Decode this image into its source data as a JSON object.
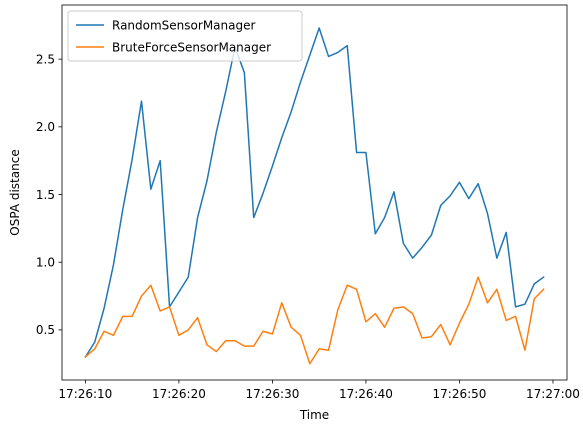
{
  "chart_data": {
    "type": "line",
    "title": "",
    "xlabel": "Time",
    "ylabel": "OSPA distance",
    "x_start": "17:26:10",
    "xlim": [
      "17:26:07.5",
      "17:27:01.5"
    ],
    "ylim": [
      0.13,
      2.9
    ],
    "x_ticks": [
      "17:26:10",
      "17:26:20",
      "17:26:30",
      "17:26:40",
      "17:26:50",
      "17:27:00"
    ],
    "y_ticks": [
      0.5,
      1.0,
      1.5,
      2.0,
      2.5
    ],
    "y_tick_labels": [
      "0.5",
      "1.0",
      "1.5",
      "2.0",
      "2.5"
    ],
    "legend_position": "top-left",
    "grid": false,
    "series": [
      {
        "name": "RandomSensorManager",
        "color": "#1f77b4",
        "x": [
          "17:26:10",
          "17:26:11",
          "17:26:12",
          "17:26:13",
          "17:26:14",
          "17:26:15",
          "17:26:16",
          "17:26:17",
          "17:26:18",
          "17:26:19",
          "17:26:20",
          "17:26:21",
          "17:26:22",
          "17:26:23",
          "17:26:24",
          "17:26:25",
          "17:26:26",
          "17:26:27",
          "17:26:28",
          "17:26:29",
          "17:26:30",
          "17:26:31",
          "17:26:32",
          "17:26:33",
          "17:26:34",
          "17:26:35",
          "17:26:36",
          "17:26:37",
          "17:26:38",
          "17:26:39",
          "17:26:40",
          "17:26:41",
          "17:26:42",
          "17:26:43",
          "17:26:44",
          "17:26:45",
          "17:26:46",
          "17:26:47",
          "17:26:48",
          "17:26:49",
          "17:26:50",
          "17:26:51",
          "17:26:52",
          "17:26:53",
          "17:26:54",
          "17:26:55",
          "17:26:56",
          "17:26:57",
          "17:26:58",
          "17:26:59"
        ],
        "values": [
          0.3,
          0.41,
          0.66,
          0.98,
          1.39,
          1.76,
          2.19,
          1.54,
          1.75,
          0.67,
          0.78,
          0.89,
          1.33,
          1.6,
          1.96,
          2.26,
          2.59,
          2.4,
          1.33,
          1.51,
          1.71,
          1.92,
          2.11,
          2.33,
          2.53,
          2.73,
          2.52,
          2.55,
          2.6,
          1.81,
          1.81,
          1.21,
          1.33,
          1.52,
          1.14,
          1.03,
          1.11,
          1.2,
          1.42,
          1.49,
          1.59,
          1.47,
          1.58,
          1.36,
          1.03,
          1.22,
          0.67,
          0.69,
          0.84,
          0.89
        ]
      },
      {
        "name": "BruteForceSensorManager",
        "color": "#ff7f0e",
        "x": [
          "17:26:10",
          "17:26:11",
          "17:26:12",
          "17:26:13",
          "17:26:14",
          "17:26:15",
          "17:26:16",
          "17:26:17",
          "17:26:18",
          "17:26:19",
          "17:26:20",
          "17:26:21",
          "17:26:22",
          "17:26:23",
          "17:26:24",
          "17:26:25",
          "17:26:26",
          "17:26:27",
          "17:26:28",
          "17:26:29",
          "17:26:30",
          "17:26:31",
          "17:26:32",
          "17:26:33",
          "17:26:34",
          "17:26:35",
          "17:26:36",
          "17:26:37",
          "17:26:38",
          "17:26:39",
          "17:26:40",
          "17:26:41",
          "17:26:42",
          "17:26:43",
          "17:26:44",
          "17:26:45",
          "17:26:46",
          "17:26:47",
          "17:26:48",
          "17:26:49",
          "17:26:50",
          "17:26:51",
          "17:26:52",
          "17:26:53",
          "17:26:54",
          "17:26:55",
          "17:26:56",
          "17:26:57",
          "17:26:58",
          "17:26:59"
        ],
        "values": [
          0.3,
          0.36,
          0.49,
          0.46,
          0.6,
          0.6,
          0.75,
          0.83,
          0.64,
          0.67,
          0.46,
          0.5,
          0.59,
          0.39,
          0.34,
          0.42,
          0.42,
          0.38,
          0.38,
          0.49,
          0.47,
          0.7,
          0.52,
          0.46,
          0.25,
          0.36,
          0.35,
          0.65,
          0.83,
          0.8,
          0.56,
          0.62,
          0.52,
          0.66,
          0.67,
          0.62,
          0.44,
          0.45,
          0.54,
          0.39,
          0.55,
          0.69,
          0.89,
          0.7,
          0.8,
          0.57,
          0.6,
          0.35,
          0.73,
          0.8
        ]
      }
    ]
  }
}
